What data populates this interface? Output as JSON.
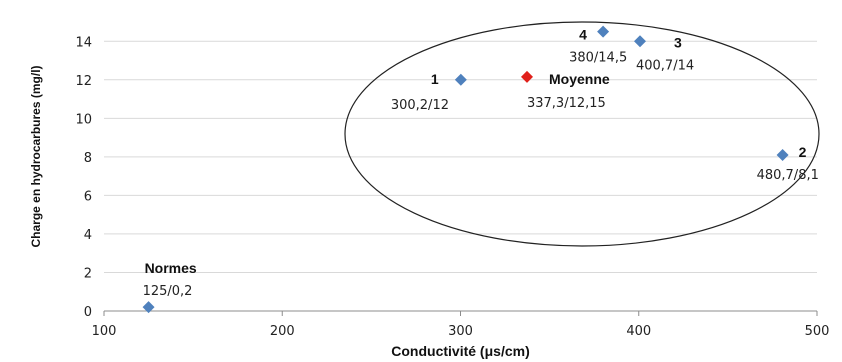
{
  "chart_data": {
    "type": "scatter",
    "xlabel": "Conductivité (μs/cm)",
    "ylabel": "Charge en hydrocarbures (mg/l)",
    "xlim": [
      100,
      500
    ],
    "ylim": [
      0,
      15
    ],
    "xticks": [
      "100",
      "200",
      "300",
      "400",
      "500"
    ],
    "yticks": [
      "0",
      "2",
      "4",
      "6",
      "8",
      "10",
      "12",
      "14"
    ],
    "grid": "horizontal",
    "points": [
      {
        "name": "1",
        "value_label": "300,2/12",
        "x": 300.2,
        "y": 12,
        "color": "#4f81bd"
      },
      {
        "name": "2",
        "value_label": "480,7/8,1",
        "x": 480.7,
        "y": 8.1,
        "color": "#4f81bd"
      },
      {
        "name": "3",
        "value_label": "400,7/14",
        "x": 400.7,
        "y": 14,
        "color": "#4f81bd"
      },
      {
        "name": "4",
        "value_label": "380/14,5",
        "x": 380,
        "y": 14.5,
        "color": "#4f81bd"
      },
      {
        "name": "Moyenne",
        "value_label": "337,3/12,15",
        "x": 337.3,
        "y": 12.15,
        "color": "#e0201b"
      },
      {
        "name": "Normes",
        "value_label": "125/0,2",
        "x": 125,
        "y": 0.2,
        "color": "#4f81bd"
      }
    ],
    "annotations": [
      "ellipse enclosing points 1, 2, 3, 4 and Moyenne"
    ]
  }
}
